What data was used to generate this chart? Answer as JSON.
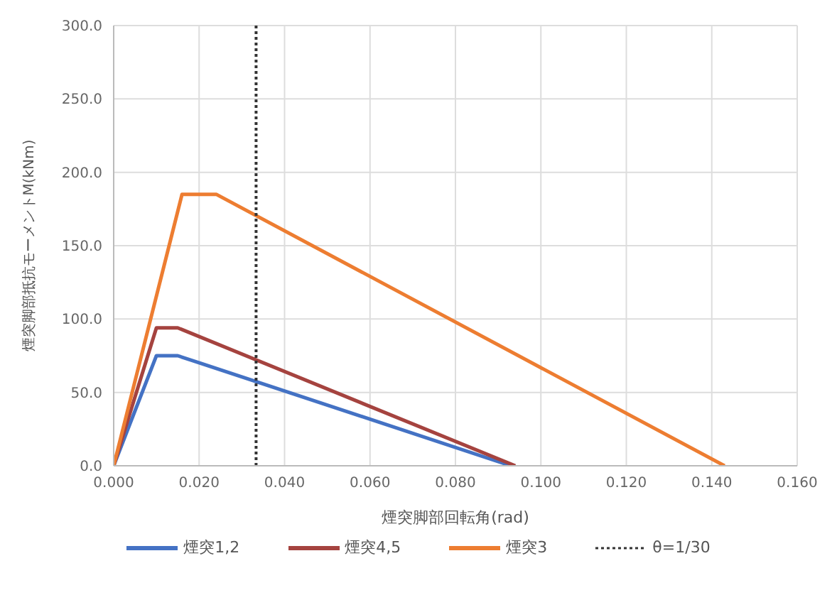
{
  "chart_data": {
    "type": "line",
    "xlabel": "煙突脚部回転角(rad)",
    "ylabel": "煙突脚部抵抗モーメントM(kNm)",
    "series": [
      {
        "name": "煙突1,2",
        "color": "#4472c4",
        "x": [
          0,
          0.01,
          0.015,
          0.093
        ],
        "values": [
          0,
          75,
          75,
          0
        ]
      },
      {
        "name": "煙突4,5",
        "color": "#a5433f",
        "x": [
          0,
          0.01,
          0.015,
          0.094
        ],
        "values": [
          0,
          94,
          94,
          0
        ]
      },
      {
        "name": "煙突3",
        "color": "#ed7d31",
        "x": [
          0,
          0.016,
          0.024,
          0.143
        ],
        "values": [
          0,
          185,
          185,
          0
        ]
      },
      {
        "name": "θ=1/30",
        "color": "#333333",
        "line_style": "dotted",
        "x": [
          0.03333333333333333,
          0.03333333333333333
        ],
        "values": [
          0,
          300
        ]
      }
    ],
    "xlim": [
      0,
      0.16
    ],
    "xticks": [
      {
        "value": 0,
        "label": "0.000"
      },
      {
        "value": 0.02,
        "label": "0.020"
      },
      {
        "value": 0.04,
        "label": "0.040"
      },
      {
        "value": 0.06,
        "label": "0.060"
      },
      {
        "value": 0.08,
        "label": "0.080"
      },
      {
        "value": 0.1,
        "label": "0.100"
      },
      {
        "value": 0.12,
        "label": "0.120"
      },
      {
        "value": 0.14,
        "label": "0.140"
      },
      {
        "value": 0.16,
        "label": "0.160"
      }
    ],
    "ylim": [
      0,
      300
    ],
    "yticks": [
      {
        "value": 0,
        "label": "0.0"
      },
      {
        "value": 50,
        "label": "50.0"
      },
      {
        "value": 100,
        "label": "100.0"
      },
      {
        "value": 150,
        "label": "150.0"
      },
      {
        "value": 200,
        "label": "200.0"
      },
      {
        "value": 250,
        "label": "250.0"
      },
      {
        "value": 300,
        "label": "300.0"
      }
    ],
    "grid": true,
    "legend": "bottom",
    "marker": "none",
    "line_style": "solid"
  }
}
